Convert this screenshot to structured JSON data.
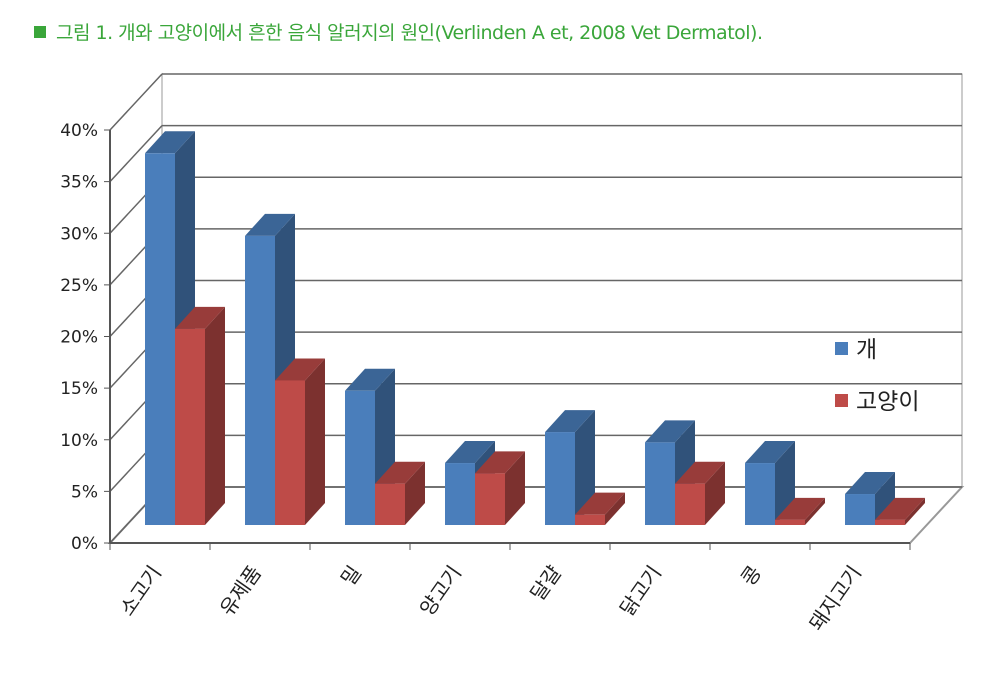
{
  "title": "그림 1. 개와 고양이에서 흔한 음식 알러지의 원인(Verlinden A et, 2008 Vet Dermatol).",
  "chart_data": {
    "type": "bar",
    "style": "3d-clustered-column",
    "categories": [
      "소고기",
      "유제품",
      "밀",
      "양고기",
      "달걀",
      "닭고기",
      "콩",
      "돼지고기"
    ],
    "series": [
      {
        "name": "개",
        "color": "#4a7ebb",
        "values": [
          36,
          28,
          13,
          6,
          9,
          8,
          6,
          3
        ]
      },
      {
        "name": "고양이",
        "color": "#be4b48",
        "values": [
          19,
          14,
          4,
          5,
          1,
          4,
          0.5,
          0.5
        ]
      }
    ],
    "yticks": [
      "0%",
      "5%",
      "10%",
      "15%",
      "20%",
      "25%",
      "30%",
      "35%",
      "40%"
    ],
    "ylim": [
      0,
      40
    ],
    "grid": true,
    "legend": "right"
  }
}
